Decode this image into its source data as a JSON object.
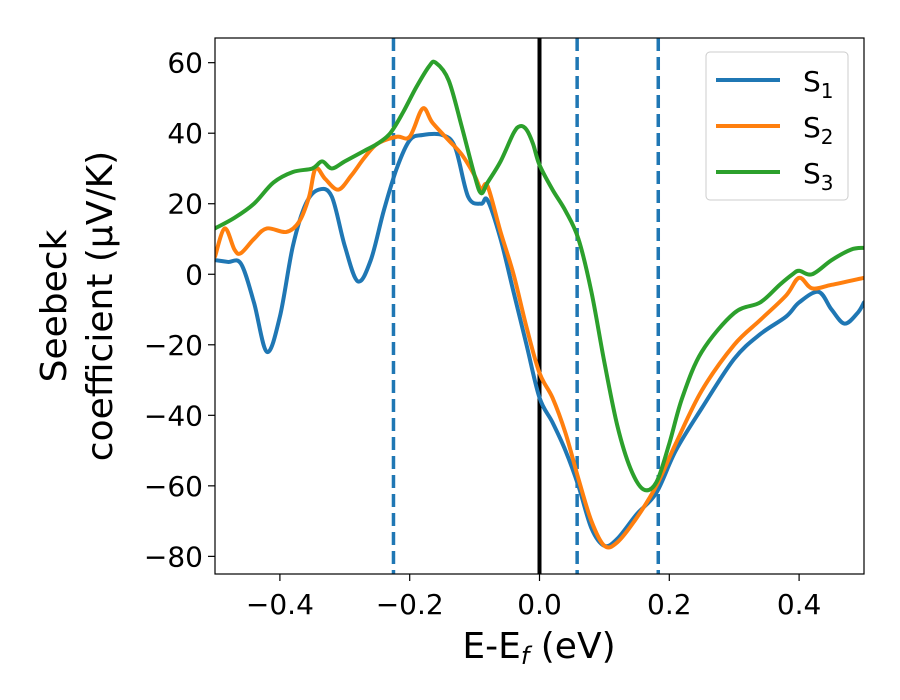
{
  "chart_data": {
    "type": "line",
    "title": "",
    "xlabel": "E-E",
    "xlabel_sub": "f",
    "xlabel_unit": " (eV)",
    "ylabel_line1": "Seebeck",
    "ylabel_line2": "coefficient  (μV/K)",
    "xlim": [
      -0.5,
      0.5
    ],
    "ylim": [
      -85,
      67
    ],
    "xticks": [
      -0.4,
      -0.2,
      0.0,
      0.2,
      0.4
    ],
    "xtick_labels": [
      "−0.4",
      "−0.2",
      "0.0",
      "0.2",
      "0.4"
    ],
    "yticks": [
      -80,
      -60,
      -40,
      -20,
      0,
      20,
      40,
      60
    ],
    "ytick_labels": [
      "−80",
      "−60",
      "−40",
      "−20",
      "0",
      "20",
      "40",
      "60"
    ],
    "grid": false,
    "legend_position": "top-right",
    "reference_lines": {
      "solid_vertical_x": 0.0,
      "dashed_vertical_x": [
        -0.225,
        0.058,
        0.183
      ]
    },
    "series": [
      {
        "name": "S",
        "sub": "1",
        "color": "#1f77b4",
        "points": [
          [
            -0.5,
            4
          ],
          [
            -0.48,
            3.5
          ],
          [
            -0.46,
            3
          ],
          [
            -0.44,
            -8
          ],
          [
            -0.42,
            -22
          ],
          [
            -0.4,
            -12
          ],
          [
            -0.38,
            8
          ],
          [
            -0.36,
            20
          ],
          [
            -0.34,
            24
          ],
          [
            -0.32,
            22
          ],
          [
            -0.3,
            8
          ],
          [
            -0.28,
            -2
          ],
          [
            -0.26,
            4
          ],
          [
            -0.24,
            18
          ],
          [
            -0.22,
            30
          ],
          [
            -0.2,
            38
          ],
          [
            -0.18,
            39.5
          ],
          [
            -0.15,
            39.5
          ],
          [
            -0.13,
            36
          ],
          [
            -0.11,
            22
          ],
          [
            -0.09,
            20
          ],
          [
            -0.08,
            21
          ],
          [
            -0.06,
            10
          ],
          [
            -0.04,
            -5
          ],
          [
            -0.02,
            -20
          ],
          [
            0.0,
            -35
          ],
          [
            0.02,
            -42
          ],
          [
            0.04,
            -50
          ],
          [
            0.06,
            -60
          ],
          [
            0.08,
            -72
          ],
          [
            0.1,
            -77
          ],
          [
            0.12,
            -75
          ],
          [
            0.15,
            -68
          ],
          [
            0.18,
            -62
          ],
          [
            0.21,
            -50
          ],
          [
            0.25,
            -38
          ],
          [
            0.3,
            -24
          ],
          [
            0.34,
            -17
          ],
          [
            0.38,
            -12
          ],
          [
            0.4,
            -8
          ],
          [
            0.43,
            -5
          ],
          [
            0.45,
            -10
          ],
          [
            0.47,
            -14
          ],
          [
            0.49,
            -11
          ],
          [
            0.5,
            -8
          ]
        ]
      },
      {
        "name": "S",
        "sub": "2",
        "color": "#ff7f0e",
        "points": [
          [
            -0.5,
            5
          ],
          [
            -0.485,
            13
          ],
          [
            -0.47,
            7
          ],
          [
            -0.46,
            6
          ],
          [
            -0.44,
            10
          ],
          [
            -0.42,
            13
          ],
          [
            -0.39,
            12
          ],
          [
            -0.37,
            15
          ],
          [
            -0.355,
            22
          ],
          [
            -0.345,
            30
          ],
          [
            -0.33,
            27
          ],
          [
            -0.31,
            24
          ],
          [
            -0.29,
            28
          ],
          [
            -0.27,
            33
          ],
          [
            -0.25,
            37
          ],
          [
            -0.22,
            39
          ],
          [
            -0.2,
            39
          ],
          [
            -0.18,
            47
          ],
          [
            -0.165,
            43
          ],
          [
            -0.14,
            38
          ],
          [
            -0.12,
            34
          ],
          [
            -0.1,
            28
          ],
          [
            -0.09,
            24
          ],
          [
            -0.08,
            25
          ],
          [
            -0.06,
            12
          ],
          [
            -0.04,
            0
          ],
          [
            -0.02,
            -15
          ],
          [
            0.0,
            -28
          ],
          [
            0.02,
            -35
          ],
          [
            0.04,
            -45
          ],
          [
            0.06,
            -58
          ],
          [
            0.08,
            -70
          ],
          [
            0.1,
            -77
          ],
          [
            0.12,
            -76
          ],
          [
            0.15,
            -69
          ],
          [
            0.18,
            -60
          ],
          [
            0.21,
            -48
          ],
          [
            0.25,
            -33
          ],
          [
            0.3,
            -20
          ],
          [
            0.34,
            -13
          ],
          [
            0.38,
            -6
          ],
          [
            0.4,
            -1
          ],
          [
            0.42,
            -4
          ],
          [
            0.45,
            -3
          ],
          [
            0.5,
            -1
          ]
        ]
      },
      {
        "name": "S",
        "sub": "3",
        "color": "#2ca02c",
        "points": [
          [
            -0.5,
            13
          ],
          [
            -0.47,
            16
          ],
          [
            -0.44,
            20
          ],
          [
            -0.41,
            26
          ],
          [
            -0.38,
            29
          ],
          [
            -0.35,
            30
          ],
          [
            -0.335,
            32
          ],
          [
            -0.32,
            30
          ],
          [
            -0.3,
            32
          ],
          [
            -0.27,
            35
          ],
          [
            -0.25,
            37
          ],
          [
            -0.23,
            40
          ],
          [
            -0.21,
            46
          ],
          [
            -0.19,
            53
          ],
          [
            -0.17,
            59
          ],
          [
            -0.16,
            60
          ],
          [
            -0.14,
            55
          ],
          [
            -0.12,
            42
          ],
          [
            -0.1,
            28
          ],
          [
            -0.09,
            23
          ],
          [
            -0.08,
            26
          ],
          [
            -0.06,
            32
          ],
          [
            -0.04,
            40
          ],
          [
            -0.03,
            42
          ],
          [
            -0.02,
            41
          ],
          [
            -0.01,
            37
          ],
          [
            0.0,
            31
          ],
          [
            0.02,
            24
          ],
          [
            0.04,
            18
          ],
          [
            0.06,
            10
          ],
          [
            0.08,
            -5
          ],
          [
            0.1,
            -25
          ],
          [
            0.12,
            -43
          ],
          [
            0.14,
            -55
          ],
          [
            0.16,
            -61
          ],
          [
            0.18,
            -59
          ],
          [
            0.2,
            -48
          ],
          [
            0.22,
            -35
          ],
          [
            0.25,
            -22
          ],
          [
            0.3,
            -11
          ],
          [
            0.34,
            -8
          ],
          [
            0.37,
            -3
          ],
          [
            0.39,
            0
          ],
          [
            0.4,
            1
          ],
          [
            0.42,
            0
          ],
          [
            0.45,
            4
          ],
          [
            0.48,
            7
          ],
          [
            0.5,
            7.5
          ]
        ]
      }
    ]
  }
}
